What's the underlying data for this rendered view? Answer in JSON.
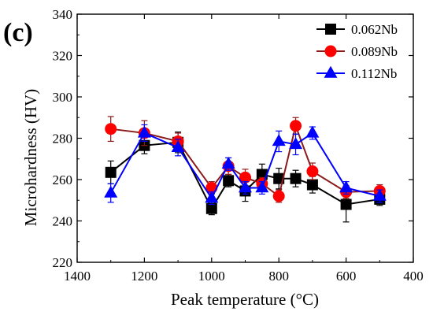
{
  "panel_label": "(c)",
  "chart_data": {
    "type": "line",
    "title": "",
    "xlabel": "Peak temperature (°C)",
    "ylabel": "Microhardness (HV)",
    "xlim": [
      1400,
      400
    ],
    "ylim": [
      220,
      340
    ],
    "x_ticks": [
      1400,
      1200,
      1000,
      800,
      600,
      400
    ],
    "y_ticks": [
      220,
      240,
      260,
      280,
      300,
      320,
      340
    ],
    "legend_position": "top-right",
    "grid": false,
    "error_bars": true,
    "series": [
      {
        "name": "0.062Nb",
        "color": "#000000",
        "marker": "square",
        "points": [
          {
            "x": 1300,
            "y": 263.5,
            "err": 5.5
          },
          {
            "x": 1200,
            "y": 276.5,
            "err": 4
          },
          {
            "x": 1100,
            "y": 278,
            "err": 5
          },
          {
            "x": 1000,
            "y": 246,
            "err": 3
          },
          {
            "x": 950,
            "y": 259.5,
            "err": 3
          },
          {
            "x": 900,
            "y": 254.5,
            "err": 5
          },
          {
            "x": 850,
            "y": 262.5,
            "err": 5
          },
          {
            "x": 800,
            "y": 260.5,
            "err": 5
          },
          {
            "x": 750,
            "y": 260.5,
            "err": 4
          },
          {
            "x": 700,
            "y": 257.5,
            "err": 4
          },
          {
            "x": 600,
            "y": 248,
            "err": 8.5
          },
          {
            "x": 500,
            "y": 250.5,
            "err": 3
          }
        ]
      },
      {
        "name": "0.089Nb",
        "color": "#ff0000",
        "line_color": "#8b1a1a",
        "marker": "circle",
        "points": [
          {
            "x": 1300,
            "y": 284.5,
            "err": 6
          },
          {
            "x": 1200,
            "y": 282.5,
            "err": 6
          },
          {
            "x": 1100,
            "y": 278.5,
            "err": 4
          },
          {
            "x": 1000,
            "y": 256,
            "err": 3
          },
          {
            "x": 950,
            "y": 266.5,
            "err": 4
          },
          {
            "x": 900,
            "y": 261,
            "err": 4
          },
          {
            "x": 850,
            "y": 258,
            "err": 3
          },
          {
            "x": 800,
            "y": 252,
            "err": 3
          },
          {
            "x": 750,
            "y": 286,
            "err": 4
          },
          {
            "x": 700,
            "y": 264,
            "err": 4
          },
          {
            "x": 600,
            "y": 254,
            "err": 3
          },
          {
            "x": 500,
            "y": 254.5,
            "err": 3
          }
        ]
      },
      {
        "name": "0.112Nb",
        "color": "#0000ff",
        "marker": "triangle",
        "points": [
          {
            "x": 1300,
            "y": 253.5,
            "err": 4.5
          },
          {
            "x": 1200,
            "y": 282.5,
            "err": 4
          },
          {
            "x": 1100,
            "y": 275.5,
            "err": 4
          },
          {
            "x": 1000,
            "y": 251,
            "err": 3
          },
          {
            "x": 950,
            "y": 267.5,
            "err": 3
          },
          {
            "x": 900,
            "y": 256,
            "err": 3
          },
          {
            "x": 850,
            "y": 256,
            "err": 3
          },
          {
            "x": 800,
            "y": 278.5,
            "err": 5
          },
          {
            "x": 750,
            "y": 277,
            "err": 5
          },
          {
            "x": 700,
            "y": 282.5,
            "err": 3
          },
          {
            "x": 600,
            "y": 256,
            "err": 3
          },
          {
            "x": 500,
            "y": 252,
            "err": 3
          }
        ]
      }
    ]
  }
}
